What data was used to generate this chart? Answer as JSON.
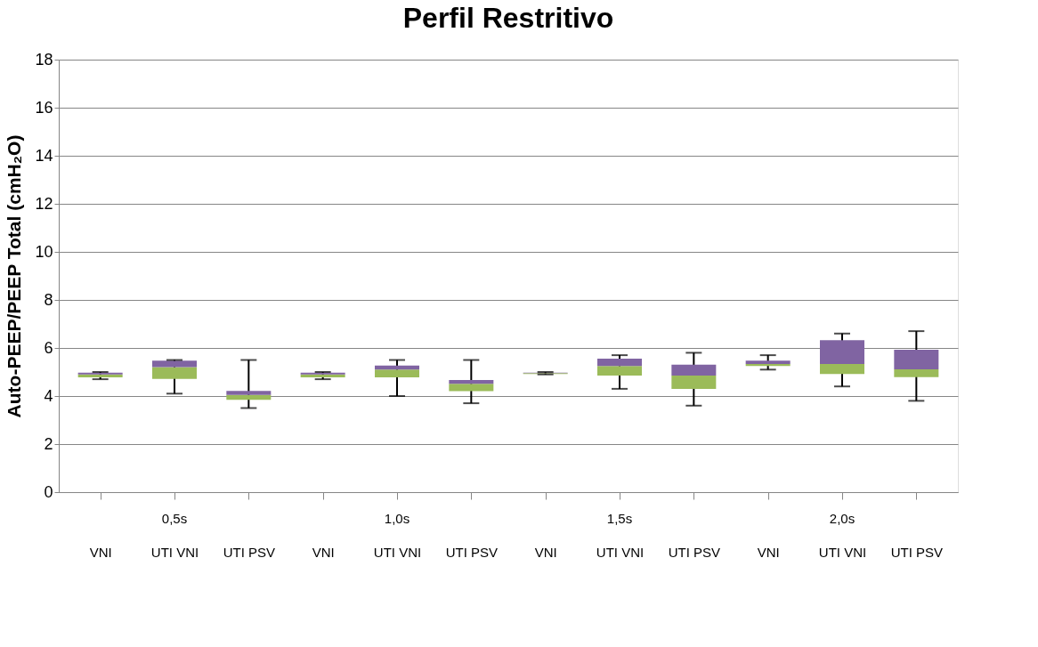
{
  "chart_data": {
    "type": "box",
    "title": "Perfil Restritivo",
    "ylabel": "Auto-PEEP/PEEP Total (cmH₂O)",
    "categories": [
      "VNI",
      "UTI VNI",
      "UTI PSV",
      "VNI",
      "UTI VNI",
      "UTI PSV",
      "VNI",
      "UTI VNI",
      "UTI PSV",
      "VNI",
      "UTI VNI",
      "UTI PSV"
    ],
    "annotations": [
      "0,5s",
      "1,0s",
      "1,5s",
      "2,0s"
    ],
    "colors": [
      "#8064a2",
      "#8064a2",
      "#8064a2",
      "#8064a2",
      "#8064a2",
      "#8064a2",
      "#8064a2",
      "#8064a2",
      "#8064a2",
      "#8064a2",
      "#8064a2",
      "#8064a2"
    ],
    "series": [
      {
        "color": "#9bbb59",
        "boxes": [
          {
            "low": 4.7,
            "q1": 4.78,
            "median": 4.9,
            "q3": 4.97,
            "high": 5.0
          },
          {
            "low": 4.1,
            "q1": 4.71,
            "median": 5.2,
            "q3": 5.47,
            "high": 5.5
          },
          {
            "low": 3.5,
            "q1": 3.84,
            "median": 4.05,
            "q3": 4.21,
            "high": 5.5
          },
          {
            "low": 4.7,
            "q1": 4.78,
            "median": 4.9,
            "q3": 4.97,
            "high": 5.0
          },
          {
            "low": 4.0,
            "q1": 4.78,
            "median": 5.1,
            "q3": 5.27,
            "high": 5.5
          },
          {
            "low": 3.7,
            "q1": 4.2,
            "median": 4.51,
            "q3": 4.67,
            "high": 5.5
          },
          {
            "low": 4.9,
            "q1": 4.92,
            "median": 4.95,
            "q3": 4.97,
            "high": 5.0
          },
          {
            "low": 4.3,
            "q1": 4.85,
            "median": 5.25,
            "q3": 5.56,
            "high": 5.7
          },
          {
            "low": 3.6,
            "q1": 4.3,
            "median": 4.85,
            "q3": 5.31,
            "high": 5.8
          },
          {
            "low": 5.1,
            "q1": 5.25,
            "median": 5.33,
            "q3": 5.47,
            "high": 5.7
          },
          {
            "low": 4.4,
            "q1": 4.92,
            "median": 5.33,
            "q3": 6.32,
            "high": 6.6
          },
          {
            "low": 3.8,
            "q1": 4.79,
            "median": 5.11,
            "q3": 5.93,
            "high": 6.7
          }
        ]
      }
    ],
    "ylim": [
      0,
      18
    ],
    "yticks": [
      0,
      2,
      4,
      6,
      8,
      10,
      12,
      14,
      16,
      18
    ],
    "grid": "y"
  }
}
